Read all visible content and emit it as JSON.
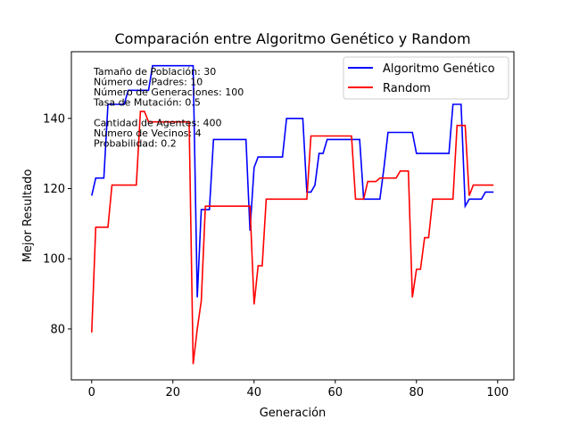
{
  "chart_data": {
    "type": "line",
    "title": "Comparación entre Algoritmo Genético y Random",
    "xlabel": "Generación",
    "ylabel": "Mejor Resultado",
    "xlim": [
      -5,
      104
    ],
    "ylim": [
      65.5,
      159
    ],
    "xticks": [
      0,
      20,
      40,
      60,
      80,
      100
    ],
    "yticks": [
      80,
      100,
      120,
      140
    ],
    "grid": false,
    "legend_position": "top-right",
    "info_lines": [
      "Tamaño de Población: 30",
      "Número de Padres: 10",
      "Número de Generaciones: 100",
      "Tasa de Mutación: 0.5",
      "",
      "Cantidad de Agentes: 400",
      "Número de Vecinos: 4",
      "Probabilidad: 0.2"
    ],
    "series": [
      {
        "name": "Algoritmo Genético",
        "color": "#0000ff",
        "x": [
          0,
          1,
          2,
          3,
          4,
          5,
          6,
          7,
          8,
          9,
          10,
          11,
          12,
          13,
          14,
          15,
          16,
          17,
          18,
          19,
          20,
          21,
          22,
          23,
          24,
          25,
          26,
          27,
          28,
          29,
          30,
          31,
          32,
          33,
          34,
          35,
          36,
          37,
          38,
          39,
          40,
          41,
          42,
          43,
          44,
          45,
          46,
          47,
          48,
          49,
          50,
          51,
          52,
          53,
          54,
          55,
          56,
          57,
          58,
          59,
          60,
          61,
          62,
          63,
          64,
          65,
          66,
          67,
          68,
          69,
          70,
          71,
          72,
          73,
          74,
          75,
          76,
          77,
          78,
          79,
          80,
          81,
          82,
          83,
          84,
          85,
          86,
          87,
          88,
          89,
          90,
          91,
          92,
          93,
          94,
          95,
          96,
          97,
          98,
          99
        ],
        "values": [
          118,
          123,
          123,
          123,
          144,
          144,
          144,
          144,
          144,
          148,
          148,
          148,
          148,
          148,
          148,
          155,
          155,
          155,
          155,
          155,
          155,
          155,
          155,
          155,
          155,
          155,
          89,
          114,
          114,
          114,
          134,
          134,
          134,
          134,
          134,
          134,
          134,
          134,
          134,
          108,
          126,
          129,
          129,
          129,
          129,
          129,
          129,
          129,
          140,
          140,
          140,
          140,
          140,
          119,
          119,
          121,
          130,
          130,
          134,
          134,
          134,
          134,
          134,
          134,
          134,
          134,
          134,
          117,
          117,
          117,
          117,
          117,
          126,
          136,
          136,
          136,
          136,
          136,
          136,
          136,
          130,
          130,
          130,
          130,
          130,
          130,
          130,
          130,
          130,
          144,
          144,
          144,
          115,
          117,
          117,
          117,
          117,
          119,
          119,
          119
        ]
      },
      {
        "name": "Random",
        "color": "#ff0000",
        "x": [
          0,
          1,
          2,
          3,
          4,
          5,
          6,
          7,
          8,
          9,
          10,
          11,
          12,
          13,
          14,
          15,
          16,
          17,
          18,
          19,
          20,
          21,
          22,
          23,
          24,
          25,
          26,
          27,
          28,
          29,
          30,
          31,
          32,
          33,
          34,
          35,
          36,
          37,
          38,
          39,
          40,
          41,
          42,
          43,
          44,
          45,
          46,
          47,
          48,
          49,
          50,
          51,
          52,
          53,
          54,
          55,
          56,
          57,
          58,
          59,
          60,
          61,
          62,
          63,
          64,
          65,
          66,
          67,
          68,
          69,
          70,
          71,
          72,
          73,
          74,
          75,
          76,
          77,
          78,
          79,
          80,
          81,
          82,
          83,
          84,
          85,
          86,
          87,
          88,
          89,
          90,
          91,
          92,
          93,
          94,
          95,
          96,
          97,
          98,
          99
        ],
        "values": [
          79,
          109,
          109,
          109,
          109,
          121,
          121,
          121,
          121,
          121,
          121,
          121,
          142,
          142,
          139,
          139,
          139,
          139,
          139,
          139,
          139,
          139,
          139,
          139,
          139,
          70,
          80,
          88,
          115,
          115,
          115,
          115,
          115,
          115,
          115,
          115,
          115,
          115,
          115,
          115,
          87,
          98,
          98,
          117,
          117,
          117,
          117,
          117,
          117,
          117,
          117,
          117,
          117,
          117,
          135,
          135,
          135,
          135,
          135,
          135,
          135,
          135,
          135,
          135,
          135,
          117,
          117,
          117,
          122,
          122,
          122,
          123,
          123,
          123,
          123,
          123,
          125,
          125,
          125,
          89,
          97,
          97,
          106,
          106,
          117,
          117,
          117,
          117,
          117,
          117,
          138,
          138,
          138,
          118,
          121,
          121,
          121,
          121,
          121,
          121
        ]
      }
    ]
  }
}
